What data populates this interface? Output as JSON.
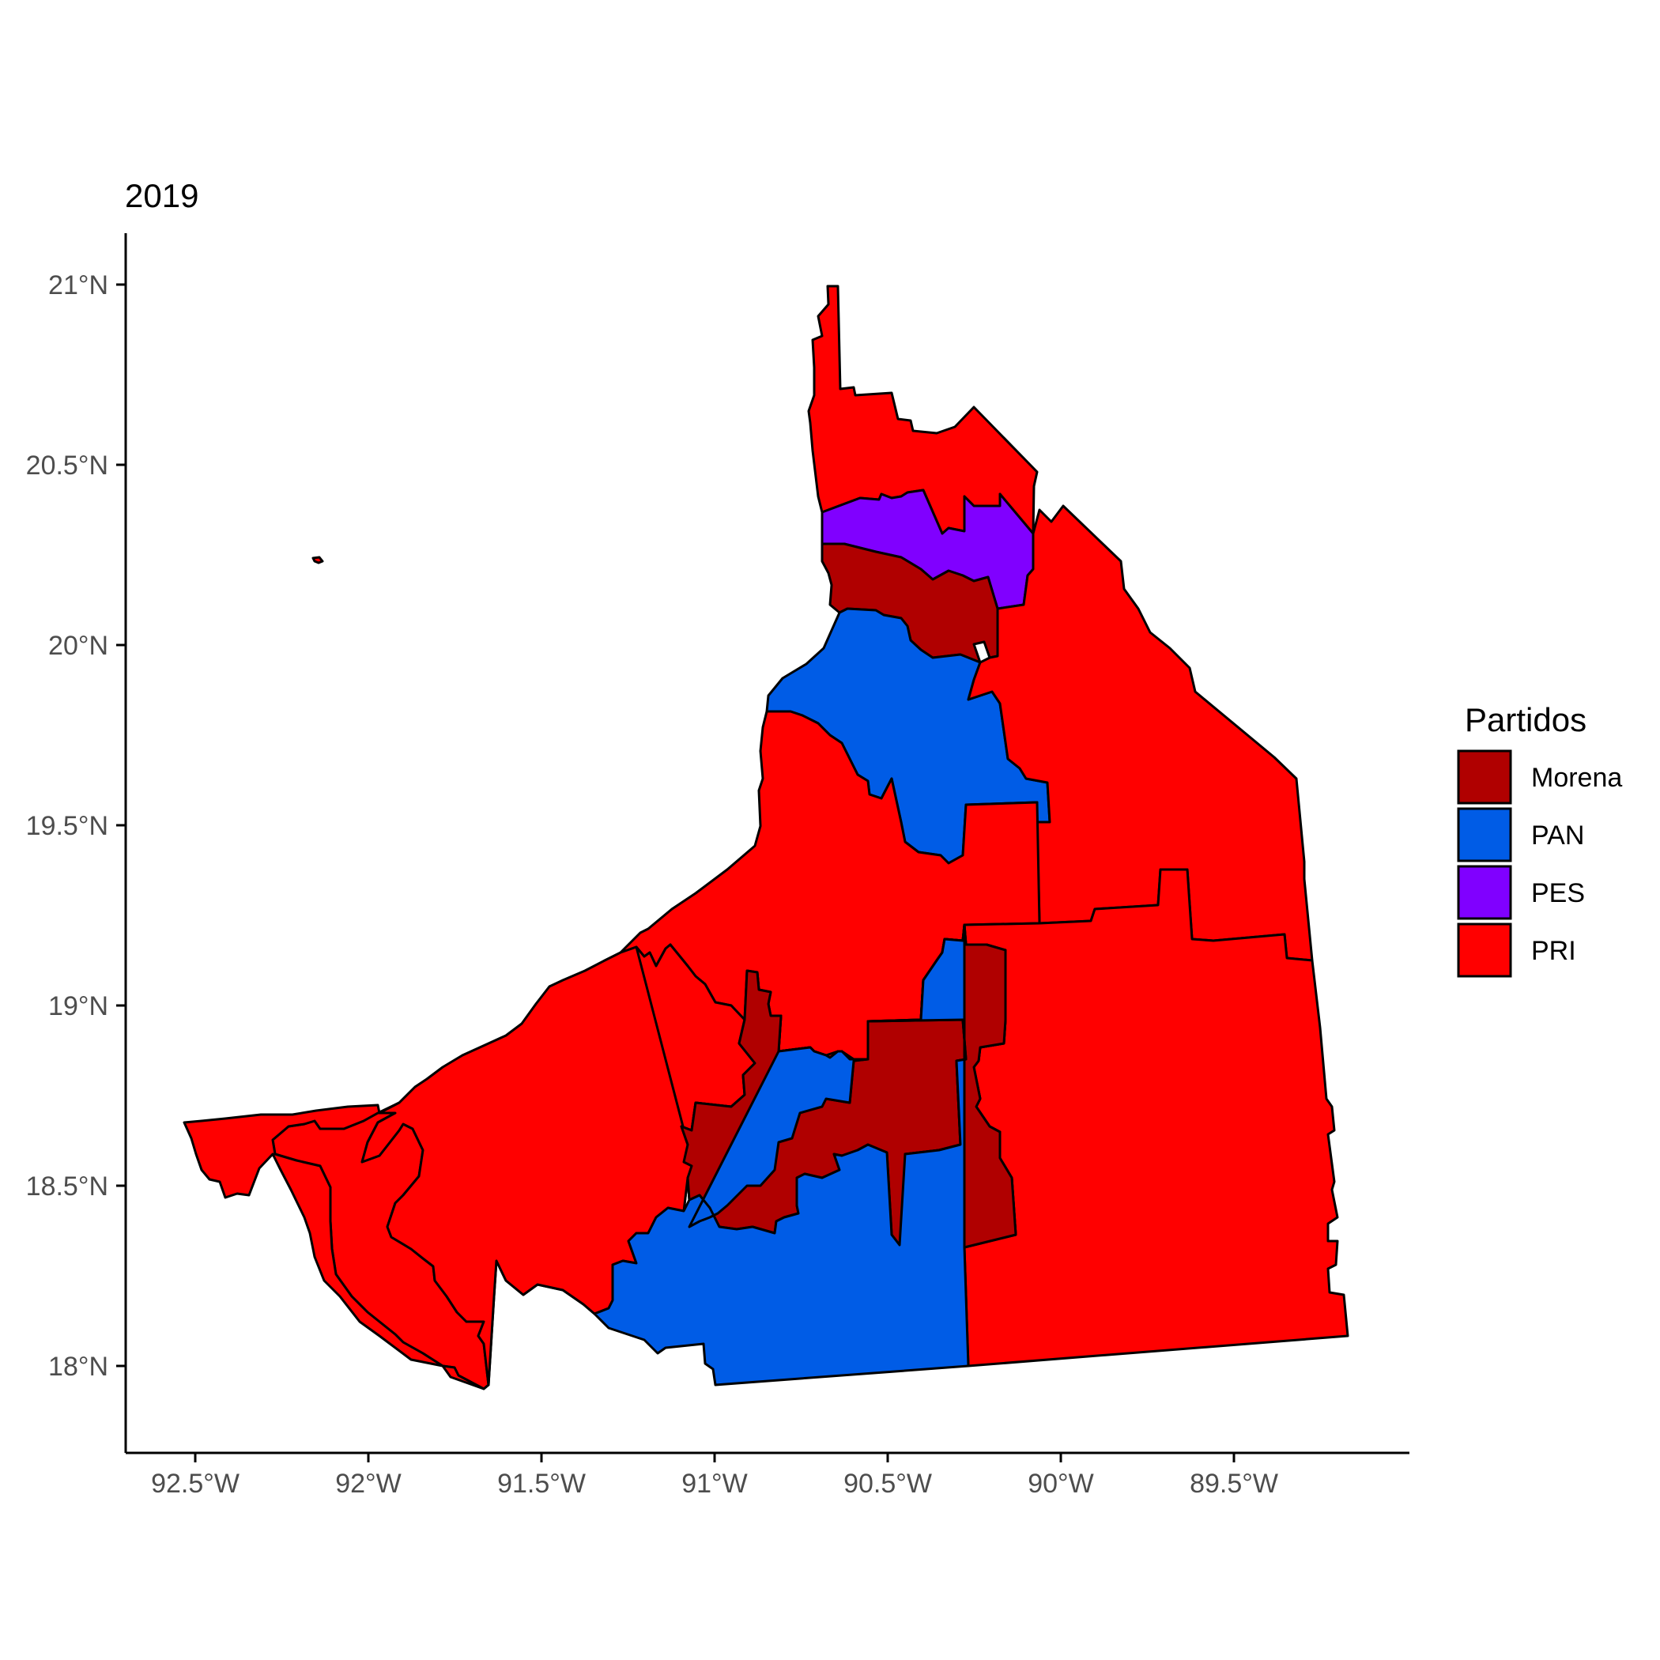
{
  "chart_data": {
    "type": "choropleth-map",
    "title": "2019",
    "x_ticks": [
      "92.5°W",
      "92°W",
      "91.5°W",
      "91°W",
      "90.5°W",
      "90°W",
      "89.5°W"
    ],
    "x_tick_values": [
      -92.5,
      -92.0,
      -91.5,
      -91.0,
      -90.5,
      -90.0,
      -89.5
    ],
    "y_ticks": [
      "21°N",
      "20.5°N",
      "20°N",
      "19.5°N",
      "19°N",
      "18.5°N",
      "18°N"
    ],
    "y_tick_values": [
      21.0,
      20.5,
      20.0,
      19.5,
      19.0,
      18.5,
      18.0
    ],
    "xlim": [
      -92.7,
      -88.99
    ],
    "ylim": [
      17.78,
      21.14
    ],
    "legend": {
      "title": "Partidos",
      "position": "right",
      "entries": [
        {
          "name": "Morena",
          "color": "#B00000"
        },
        {
          "name": "PAN",
          "color": "#005CE6"
        },
        {
          "name": "PES",
          "color": "#8000FF"
        },
        {
          "name": "PRI",
          "color": "#FF0000"
        }
      ]
    },
    "regions": [
      {
        "id": "north-tip",
        "party": "PRI"
      },
      {
        "id": "pes-district",
        "party": "PES"
      },
      {
        "id": "morena-north",
        "party": "Morena"
      },
      {
        "id": "pan-north",
        "party": "PAN"
      },
      {
        "id": "east-large",
        "party": "PRI"
      },
      {
        "id": "central-west",
        "party": "PRI"
      },
      {
        "id": "southeast",
        "party": "PRI"
      },
      {
        "id": "southwest",
        "party": "PRI"
      },
      {
        "id": "far-southwest",
        "party": "PRI"
      },
      {
        "id": "morena-central-west",
        "party": "Morena"
      },
      {
        "id": "morena-central-east",
        "party": "Morena"
      },
      {
        "id": "pan-south",
        "party": "PAN"
      }
    ]
  }
}
